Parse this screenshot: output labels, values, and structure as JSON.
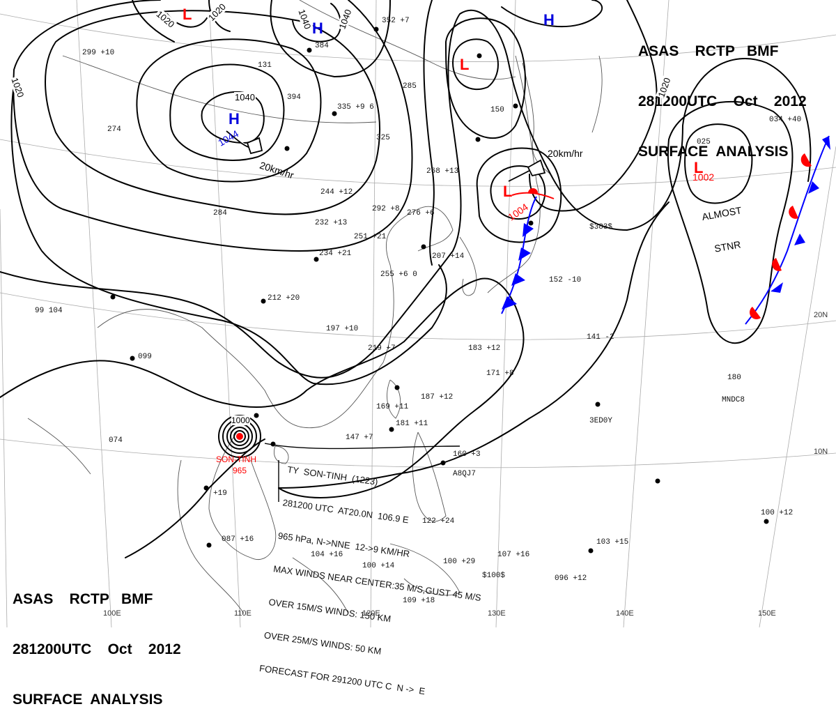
{
  "header_top": {
    "line1": "ASAS    RCTP   BMF",
    "line2": "281200UTC    Oct    2012",
    "line3": "SURFACE  ANALYSIS"
  },
  "header_bottom": {
    "line1": "ASAS    RCTP   BMF",
    "line2": "281200UTC    Oct    2012",
    "line3": "SURFACE  ANALYSIS"
  },
  "latitude_labels": [
    "20N",
    "10N"
  ],
  "longitude_labels": [
    "100E",
    "110E",
    "120E",
    "130E",
    "140E",
    "150E"
  ],
  "isobar_labels": [
    "1020",
    "1020",
    "1040",
    "1040",
    "1040",
    "1020",
    "1020"
  ],
  "pressure_centers": [
    {
      "type": "L",
      "value": "",
      "color": "#ff0000"
    },
    {
      "type": "H",
      "value": "",
      "color": "#0000dd"
    },
    {
      "type": "H",
      "value": "",
      "color": "#0000dd"
    },
    {
      "type": "H",
      "value": "1044",
      "color": "#0000dd"
    },
    {
      "type": "L",
      "value": "",
      "color": "#ff0000"
    },
    {
      "type": "L",
      "value": "1004",
      "color": "#ff0000"
    },
    {
      "type": "L",
      "value": "1002",
      "color": "#ff0000"
    }
  ],
  "motion_labels": [
    "20km/hr",
    "20km/hr"
  ],
  "stationary_label": {
    "line1": "ALMOST",
    "line2": "STNR"
  },
  "typhoon": {
    "center_pressure": "1000",
    "name": "SON-TINH",
    "pressure": "965",
    "bulletin": [
      "TY  SON-TINH  (1223)",
      "281200 UTC  AT20.0N  106.9 E",
      "965 hPa, N->NNE  12->9 KM/HR",
      "MAX WINDS NEAR CENTER:35 M/S,GUST 45 M/S",
      "OVER 15M/S WINDS: 150 KM",
      "OVER 25M/S WINDS: 50 KM",
      "FORECAST FOR 291200 UTC C  N ->  E"
    ]
  },
  "station_reports": [
    "299 +10",
    "274",
    "352 +7",
    "384",
    "131",
    "394",
    "335 +9 6",
    "325",
    "285",
    "150",
    "268 +13",
    "244 +12",
    "284",
    "292 +8",
    "276 +6",
    "232 +13",
    "251 +21",
    "234 +21",
    "207 +14",
    "255 +6 0",
    "212 +20",
    "197 +10",
    "219 +7",
    "183 +12",
    "171 +8",
    "187 +12",
    "169 +11",
    "181 +11",
    "147 +7",
    "160 +3",
    "99 104",
    "099",
    "074",
    "+19",
    "087 +16",
    "104 +16",
    "100 +14",
    "122 +24",
    "100 +29",
    "109 +18",
    "107 +16",
    "096 +12",
    "103 +15",
    "100 +12",
    "180",
    "141 -2",
    "152 -10",
    "034 +40",
    "025",
    "$383$",
    "$100$",
    "MNDC8",
    "3ED0Y",
    "A8QJ7"
  ],
  "colors": {
    "isobar": "#000000",
    "low": "#ff0000",
    "high": "#0000dd",
    "warm_front": "#ff0000",
    "cold_front": "#0000ff",
    "coast": "#555555",
    "grid": "#aaaaaa"
  }
}
